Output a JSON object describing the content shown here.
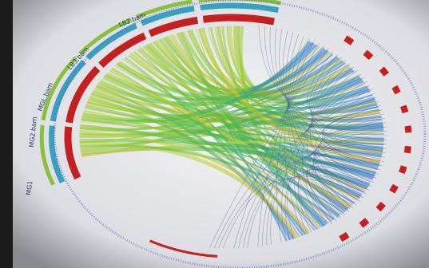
{
  "tracks": [
    {
      "label": "MG1"
    },
    {
      "label": "MG2.bam"
    },
    {
      "label": "MGL.bam"
    },
    {
      "label": "LB3.bam"
    },
    {
      "label": "LB2.bam"
    }
  ]
}
